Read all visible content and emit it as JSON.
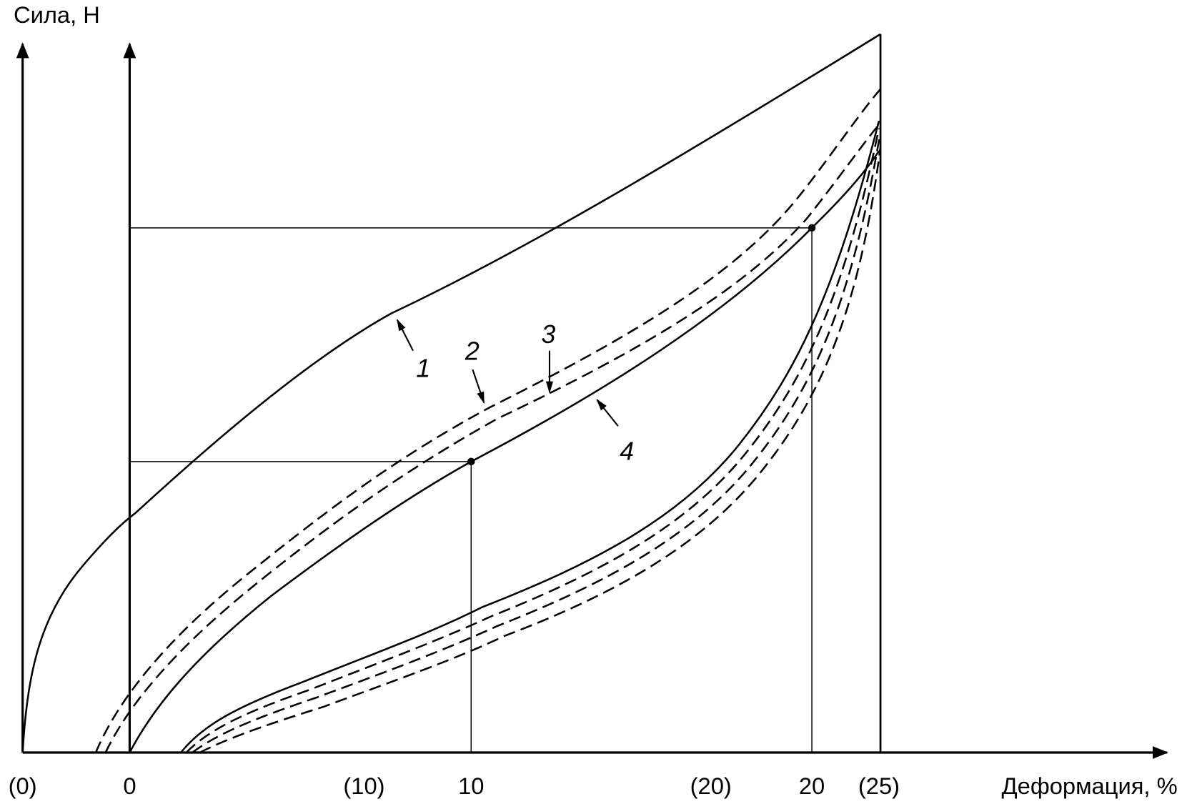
{
  "y_axis_label": "Сила, Н",
  "x_axis_label": "Деформация, %",
  "x_ticks_outer": [
    "(0)",
    "(10)",
    "(20)",
    "(25)"
  ],
  "x_ticks_inner": [
    "0",
    "10",
    "20"
  ],
  "curve_labels": [
    "1",
    "2",
    "3",
    "4"
  ]
}
